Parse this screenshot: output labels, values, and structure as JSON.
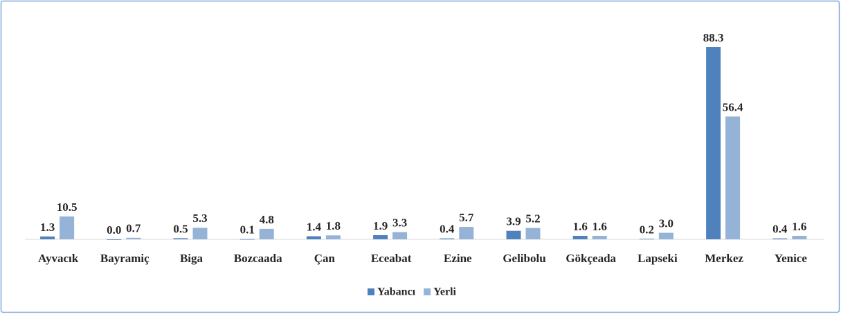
{
  "chart_data": {
    "type": "bar",
    "categories": [
      "Ayvacık",
      "Bayramiç",
      "Biga",
      "Bozcaada",
      "Çan",
      "Eceabat",
      "Ezine",
      "Gelibolu",
      "Gökçeada",
      "Lapseki",
      "Merkez",
      "Yenice"
    ],
    "series": [
      {
        "name": "Yabancı",
        "color": "#4f81bd",
        "values": [
          1.3,
          0,
          0.5,
          0.1,
          1.4,
          1.9,
          0.4,
          3.9,
          1.6,
          0.2,
          88.3,
          0.4
        ],
        "value_labels": [
          "1.3",
          "0.0",
          "0.5",
          "0.1",
          "1.4",
          "1.9",
          "0.4",
          "3.9",
          "1.6",
          "0.2",
          "88.3",
          "0.4"
        ]
      },
      {
        "name": "Yerli",
        "color": "#95b3d7",
        "values": [
          10.5,
          0.7,
          5.3,
          4.8,
          1.8,
          3.3,
          5.7,
          5.2,
          1.6,
          3.0,
          56.4,
          1.6
        ],
        "value_labels": [
          "10.5",
          "0.7",
          "5.3",
          "4.8",
          "1.8",
          "3.3",
          "5.7",
          "5.2",
          "1.6",
          "3.0",
          "56.4",
          "1.6"
        ]
      }
    ],
    "legend": "bottom"
  }
}
